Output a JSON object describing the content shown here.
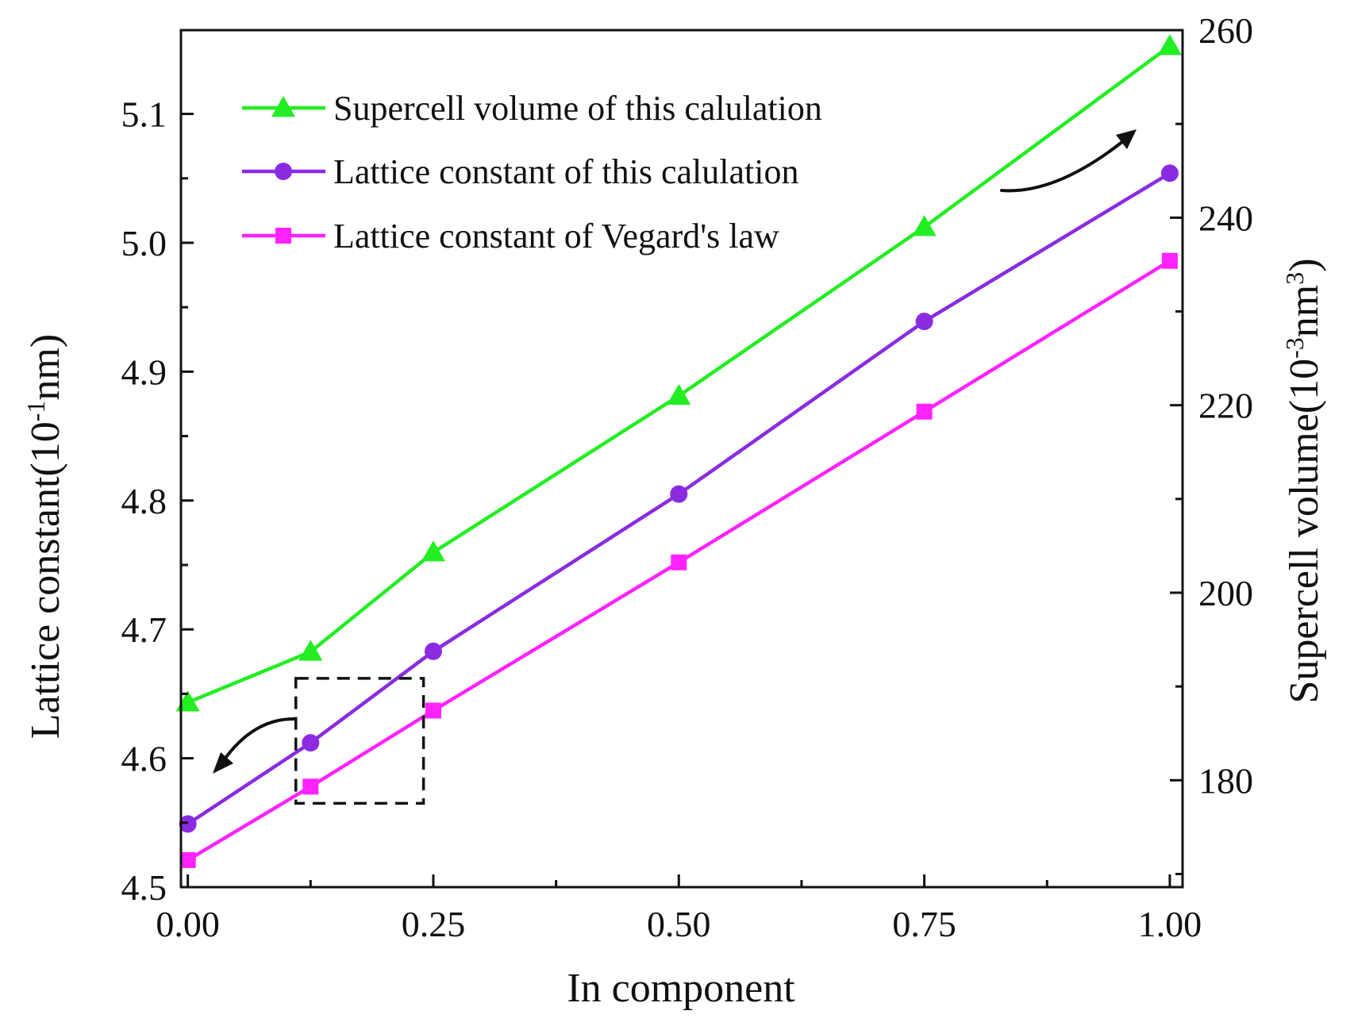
{
  "chart_data": {
    "type": "line",
    "x": [
      0.0,
      0.125,
      0.25,
      0.5,
      0.75,
      1.0
    ],
    "x_ticks": [
      "0.00",
      "0.25",
      "0.50",
      "0.75",
      "1.00"
    ],
    "x_tick_values": [
      0.0,
      0.25,
      0.5,
      0.75,
      1.0
    ],
    "xlabel": "In component",
    "xlim": [
      -0.007,
      1.013
    ],
    "left_axis": {
      "label_main": "Lattice constant(10",
      "label_sup": "-1",
      "label_end": "nm)",
      "ylim": [
        4.5,
        5.165
      ],
      "ticks": [
        "4.5",
        "4.6",
        "4.7",
        "4.8",
        "4.9",
        "5.0",
        "5.1"
      ],
      "tick_values": [
        4.5,
        4.6,
        4.7,
        4.8,
        4.9,
        5.0,
        5.1
      ]
    },
    "right_axis": {
      "label_main": "Supercell volume(10",
      "label_sup": "-3",
      "label_end": "nm",
      "label_sup2": "3",
      "label_close": ")",
      "ylim": [
        168.6,
        260
      ],
      "ticks": [
        "180",
        "200",
        "220",
        "240",
        "260"
      ],
      "tick_values": [
        180,
        200,
        220,
        240,
        260
      ]
    },
    "series": [
      {
        "name": "Supercell volume of this calulation",
        "axis": "right",
        "marker": "triangle",
        "color": "#22ee22",
        "values": [
          188.3,
          193.7,
          204.3,
          221.0,
          239.0,
          258.3
        ]
      },
      {
        "name": "Lattice constant of this calulation",
        "axis": "left",
        "marker": "circle",
        "color": "#8a2be2",
        "values": [
          4.549,
          4.612,
          4.683,
          4.805,
          4.939,
          5.054
        ]
      },
      {
        "name": "Lattice constant of Vegard's law",
        "axis": "left",
        "marker": "square",
        "color": "#ff22ff",
        "values": [
          4.521,
          4.578,
          4.637,
          4.752,
          4.869,
          4.986
        ]
      }
    ],
    "legend_position": "top-left",
    "annotations": [
      {
        "type": "dashed-box",
        "x_range": [
          0.11,
          0.24
        ],
        "y_range": [
          4.565,
          4.662
        ]
      },
      {
        "type": "arrow",
        "points_to": "left-axis"
      },
      {
        "type": "arrow",
        "points_to": "right-axis"
      }
    ]
  }
}
